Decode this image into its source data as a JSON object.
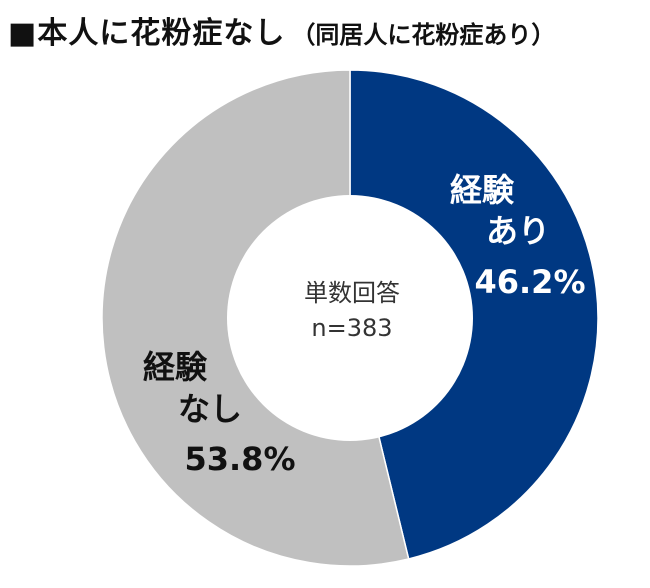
{
  "title": {
    "main": "■本人に花粉症なし",
    "sub": "（同居人に花粉症あり）"
  },
  "center": {
    "line1": "単数回答",
    "line2": "n=383"
  },
  "colors": {
    "series_0": "#003882",
    "series_1": "#c0c0c0",
    "label_on_dark": "#ffffff",
    "label_on_light": "#111111"
  },
  "chart_data": {
    "type": "pie",
    "title": "■本人に花粉症なし（同居人に花粉症あり）",
    "categories": [
      "経験あり",
      "経験なし"
    ],
    "values": [
      46.2,
      53.8
    ],
    "unit": "%",
    "labels": [
      {
        "line1": "経験",
        "line2": "あり",
        "value_text": "46.2%"
      },
      {
        "line1": "経験",
        "line2": "なし",
        "value_text": "53.8%"
      }
    ]
  }
}
